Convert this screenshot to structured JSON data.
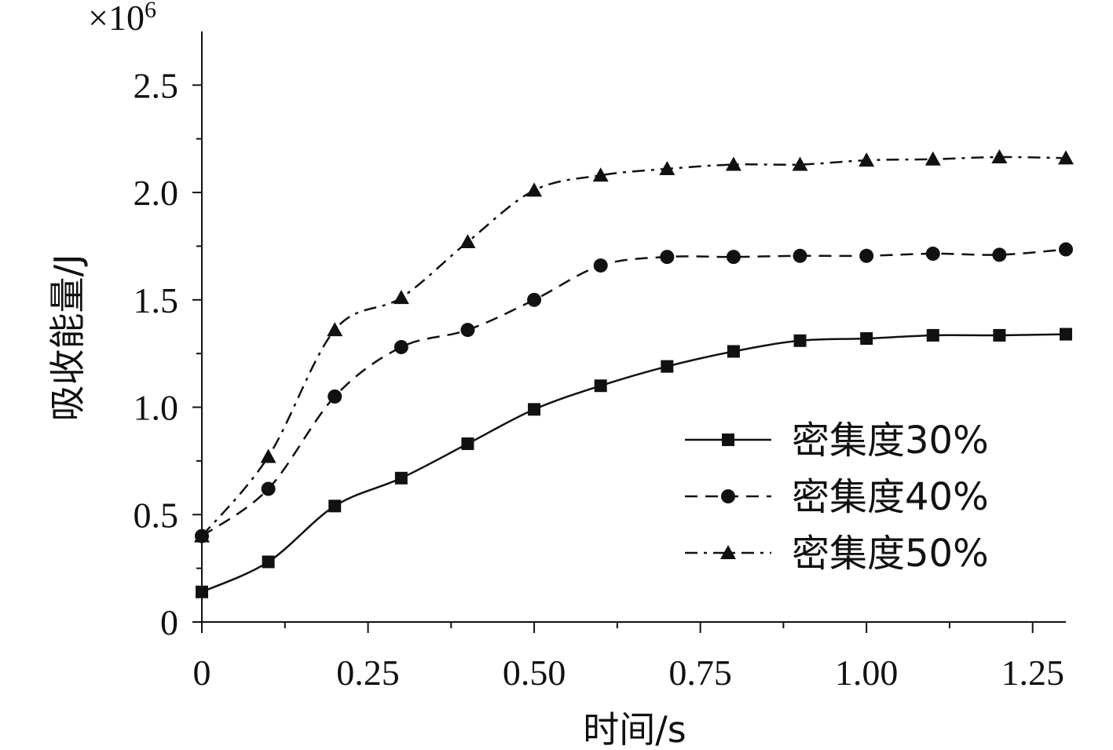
{
  "chart_data": {
    "type": "line",
    "title": "",
    "xlabel": "时间/s",
    "ylabel": "吸收能量/J",
    "y_multiplier": {
      "base": "×10",
      "exponent": "6"
    },
    "xlim": [
      0,
      1.3
    ],
    "ylim": [
      0,
      2.75
    ],
    "x_ticks": [
      0,
      0.25,
      0.5,
      0.75,
      1.0,
      1.25
    ],
    "x_tick_labels": [
      "0",
      "0.25",
      "0.50",
      "0.75",
      "1.00",
      "1.25"
    ],
    "y_ticks": [
      0,
      0.5,
      1.0,
      1.5,
      2.0,
      2.5
    ],
    "y_tick_labels": [
      "0",
      "0.5",
      "1.0",
      "1.5",
      "2.0",
      "2.5"
    ],
    "grid": false,
    "legend_position": "center-right",
    "x": [
      0,
      0.1,
      0.2,
      0.3,
      0.4,
      0.5,
      0.6,
      0.7,
      0.8,
      0.9,
      1.0,
      1.1,
      1.2,
      1.3
    ],
    "series": [
      {
        "name": "密集度30%",
        "marker": "square",
        "line_style": "solid",
        "values": [
          0.14,
          0.28,
          0.54,
          0.67,
          0.83,
          0.99,
          1.1,
          1.19,
          1.26,
          1.31,
          1.32,
          1.335,
          1.335,
          1.34
        ]
      },
      {
        "name": "密集度40%",
        "marker": "circle",
        "line_style": "dashed",
        "values": [
          0.4,
          0.62,
          1.05,
          1.28,
          1.36,
          1.5,
          1.66,
          1.7,
          1.7,
          1.705,
          1.705,
          1.715,
          1.71,
          1.735
        ]
      },
      {
        "name": "密集度50%",
        "marker": "triangle",
        "line_style": "dashdot",
        "values": [
          0.4,
          0.77,
          1.36,
          1.51,
          1.77,
          2.01,
          2.08,
          2.11,
          2.13,
          2.13,
          2.15,
          2.155,
          2.165,
          2.16
        ]
      }
    ]
  }
}
